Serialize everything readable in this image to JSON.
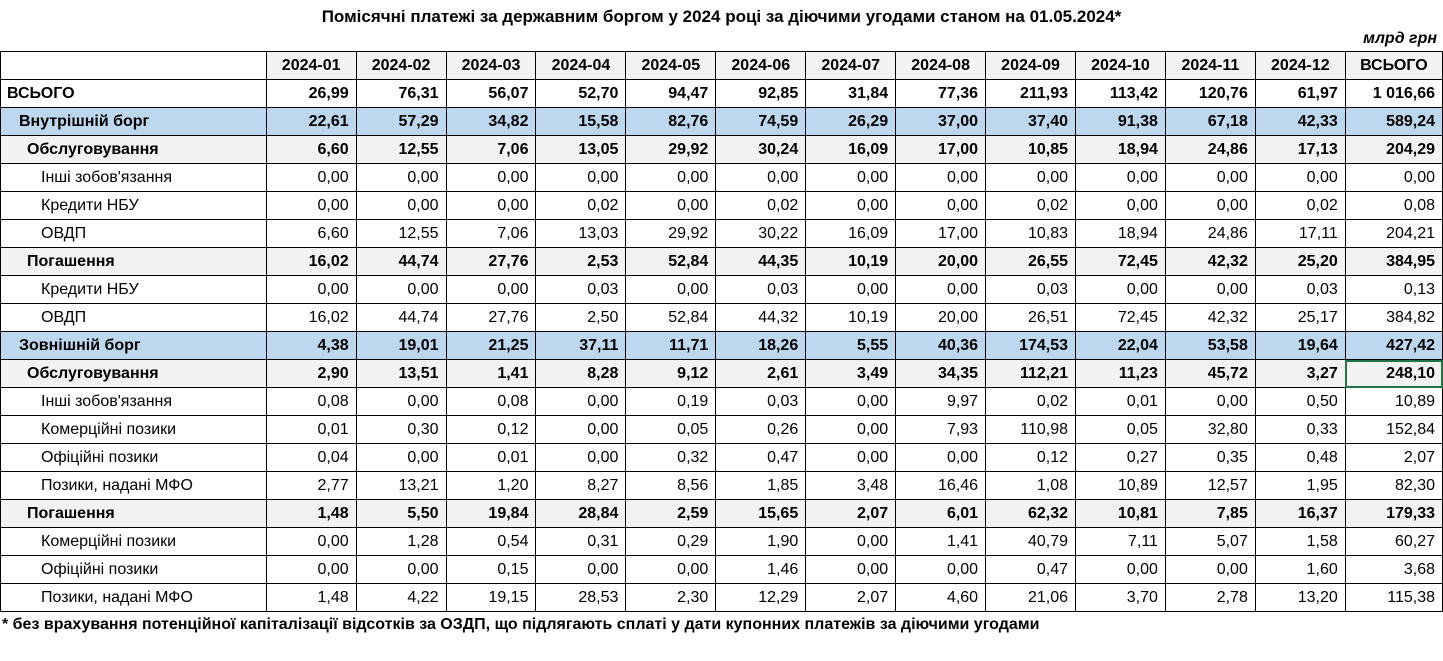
{
  "title": "Помісячні платежі за державним боргом у 2024  році  за діючими угодами станом на 01.05.2024*",
  "units": "млрд грн",
  "footnote": "* без  врахування потенційної капіталізації відсотків за ОЗДП, що підлягають сплаті у дати купонних платежів за діючими угодами",
  "colors": {
    "section_row_bg": "#bdd7ee",
    "subsection_row_bg": "#f2f2f2",
    "header_row_bg": "#f2f2f2",
    "selection_border": "#217346",
    "grid_border": "#000000"
  },
  "table": {
    "columns": [
      "2024-01",
      "2024-02",
      "2024-03",
      "2024-04",
      "2024-05",
      "2024-06",
      "2024-07",
      "2024-08",
      "2024-09",
      "2024-10",
      "2024-11",
      "2024-12",
      "ВСЬОГО"
    ],
    "selected_cell": {
      "row_index": 10,
      "col_index": 12
    },
    "rows": [
      {
        "label": "ВСЬОГО",
        "style": "grand",
        "indent": 0,
        "values": [
          "26,99",
          "76,31",
          "56,07",
          "52,70",
          "94,47",
          "92,85",
          "31,84",
          "77,36",
          "211,93",
          "113,42",
          "120,76",
          "61,97",
          "1 016,66"
        ]
      },
      {
        "label": "Внутрішній борг",
        "style": "section",
        "indent": 1,
        "values": [
          "22,61",
          "57,29",
          "34,82",
          "15,58",
          "82,76",
          "74,59",
          "26,29",
          "37,00",
          "37,40",
          "91,38",
          "67,18",
          "42,33",
          "589,24"
        ]
      },
      {
        "label": "Обслуговування",
        "style": "subsection",
        "indent": 2,
        "values": [
          "6,60",
          "12,55",
          "7,06",
          "13,05",
          "29,92",
          "30,24",
          "16,09",
          "17,00",
          "10,85",
          "18,94",
          "24,86",
          "17,13",
          "204,29"
        ]
      },
      {
        "label": "Інші зобов'язання",
        "style": "detail",
        "indent": 3,
        "values": [
          "0,00",
          "0,00",
          "0,00",
          "0,00",
          "0,00",
          "0,00",
          "0,00",
          "0,00",
          "0,00",
          "0,00",
          "0,00",
          "0,00",
          "0,00"
        ]
      },
      {
        "label": "Кредити НБУ",
        "style": "detail",
        "indent": 3,
        "values": [
          "0,00",
          "0,00",
          "0,00",
          "0,02",
          "0,00",
          "0,02",
          "0,00",
          "0,00",
          "0,02",
          "0,00",
          "0,00",
          "0,02",
          "0,08"
        ]
      },
      {
        "label": "ОВДП",
        "style": "detail",
        "indent": 3,
        "values": [
          "6,60",
          "12,55",
          "7,06",
          "13,03",
          "29,92",
          "30,22",
          "16,09",
          "17,00",
          "10,83",
          "18,94",
          "24,86",
          "17,11",
          "204,21"
        ]
      },
      {
        "label": "Погашення",
        "style": "subsection",
        "indent": 2,
        "values": [
          "16,02",
          "44,74",
          "27,76",
          "2,53",
          "52,84",
          "44,35",
          "10,19",
          "20,00",
          "26,55",
          "72,45",
          "42,32",
          "25,20",
          "384,95"
        ]
      },
      {
        "label": "Кредити НБУ",
        "style": "detail",
        "indent": 3,
        "values": [
          "0,00",
          "0,00",
          "0,00",
          "0,03",
          "0,00",
          "0,03",
          "0,00",
          "0,00",
          "0,03",
          "0,00",
          "0,00",
          "0,03",
          "0,13"
        ]
      },
      {
        "label": "ОВДП",
        "style": "detail",
        "indent": 3,
        "values": [
          "16,02",
          "44,74",
          "27,76",
          "2,50",
          "52,84",
          "44,32",
          "10,19",
          "20,00",
          "26,51",
          "72,45",
          "42,32",
          "25,17",
          "384,82"
        ]
      },
      {
        "label": "Зовнішній борг",
        "style": "section",
        "indent": 1,
        "values": [
          "4,38",
          "19,01",
          "21,25",
          "37,11",
          "11,71",
          "18,26",
          "5,55",
          "40,36",
          "174,53",
          "22,04",
          "53,58",
          "19,64",
          "427,42"
        ]
      },
      {
        "label": "Обслуговування",
        "style": "subsection",
        "indent": 2,
        "values": [
          "2,90",
          "13,51",
          "1,41",
          "8,28",
          "9,12",
          "2,61",
          "3,49",
          "34,35",
          "112,21",
          "11,23",
          "45,72",
          "3,27",
          "248,10"
        ]
      },
      {
        "label": "Інші зобов'язання",
        "style": "detail",
        "indent": 3,
        "values": [
          "0,08",
          "0,00",
          "0,08",
          "0,00",
          "0,19",
          "0,03",
          "0,00",
          "9,97",
          "0,02",
          "0,01",
          "0,00",
          "0,50",
          "10,89"
        ]
      },
      {
        "label": "Комерційні позики",
        "style": "detail",
        "indent": 3,
        "values": [
          "0,01",
          "0,30",
          "0,12",
          "0,00",
          "0,05",
          "0,26",
          "0,00",
          "7,93",
          "110,98",
          "0,05",
          "32,80",
          "0,33",
          "152,84"
        ]
      },
      {
        "label": "Офіційні позики",
        "style": "detail",
        "indent": 3,
        "values": [
          "0,04",
          "0,00",
          "0,01",
          "0,00",
          "0,32",
          "0,47",
          "0,00",
          "0,00",
          "0,12",
          "0,27",
          "0,35",
          "0,48",
          "2,07"
        ]
      },
      {
        "label": "Позики, надані МФО",
        "style": "detail",
        "indent": 3,
        "values": [
          "2,77",
          "13,21",
          "1,20",
          "8,27",
          "8,56",
          "1,85",
          "3,48",
          "16,46",
          "1,08",
          "10,89",
          "12,57",
          "1,95",
          "82,30"
        ]
      },
      {
        "label": "Погашення",
        "style": "subsection",
        "indent": 2,
        "values": [
          "1,48",
          "5,50",
          "19,84",
          "28,84",
          "2,59",
          "15,65",
          "2,07",
          "6,01",
          "62,32",
          "10,81",
          "7,85",
          "16,37",
          "179,33"
        ]
      },
      {
        "label": "Комерційні позики",
        "style": "detail",
        "indent": 3,
        "values": [
          "0,00",
          "1,28",
          "0,54",
          "0,31",
          "0,29",
          "1,90",
          "0,00",
          "1,41",
          "40,79",
          "7,11",
          "5,07",
          "1,58",
          "60,27"
        ]
      },
      {
        "label": "Офіційні позики",
        "style": "detail",
        "indent": 3,
        "values": [
          "0,00",
          "0,00",
          "0,15",
          "0,00",
          "0,00",
          "1,46",
          "0,00",
          "0,00",
          "0,47",
          "0,00",
          "0,00",
          "1,60",
          "3,68"
        ]
      },
      {
        "label": "Позики, надані МФО",
        "style": "detail",
        "indent": 3,
        "values": [
          "1,48",
          "4,22",
          "19,15",
          "28,53",
          "2,30",
          "12,29",
          "2,07",
          "4,60",
          "21,06",
          "3,70",
          "2,78",
          "13,20",
          "115,38"
        ]
      }
    ]
  }
}
